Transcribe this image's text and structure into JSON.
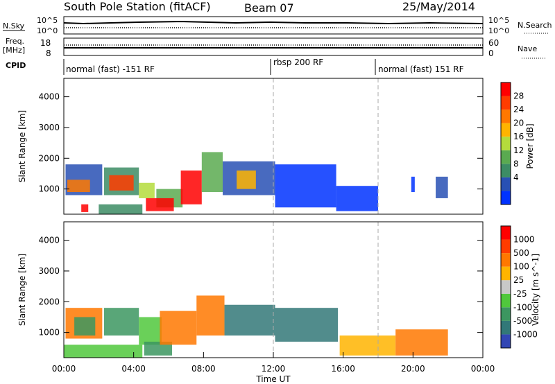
{
  "header": {
    "station": "South Pole Station (fitACF)",
    "beam": "Beam 07",
    "date": "25/May/2014"
  },
  "top_panels": {
    "nsky_label": "N.Sky",
    "nsky_ticks": [
      "10^5",
      "10^0"
    ],
    "nsearch_label": "N.Search",
    "nsearch_ticks": [
      "10^5",
      "10^0"
    ],
    "freq_label_1": "Freq.",
    "freq_label_2": "[MHz]",
    "freq_ticks": [
      "18",
      "8"
    ],
    "nave_label": "Nave",
    "nave_ticks": [
      "60",
      "0"
    ],
    "cpid_label": "CPID",
    "cpid_segments": [
      {
        "label": "normal (fast) -151 RF",
        "start": 0,
        "end": 12
      },
      {
        "label": "rbsp 200 RF",
        "start": 12,
        "end": 18
      },
      {
        "label": "normal (fast) 151 RF",
        "start": 18,
        "end": 24
      }
    ]
  },
  "chart_data": [
    {
      "type": "heatmap",
      "name": "power",
      "xlabel": "Time UT",
      "ylabel": "Slant Range [km]",
      "xlim": [
        0,
        24
      ],
      "ylim": [
        180,
        4600
      ],
      "yticks": [
        "1000",
        "2000",
        "3000",
        "4000"
      ],
      "xticks": [
        "00:00",
        "04:00",
        "08:00",
        "12:00",
        "16:00",
        "20:00",
        "00:00"
      ],
      "colorbar": {
        "label": "Power [dB]",
        "ticks": [
          "28",
          "24",
          "20",
          "16",
          "12",
          "8",
          "4"
        ],
        "colors": [
          "#0032ff",
          "#2850b4",
          "#3c8c64",
          "#5aaa50",
          "#b4dc3c",
          "#ffb400",
          "#ff7800",
          "#ff3c00",
          "#ff0000"
        ]
      },
      "regions": [
        {
          "t0": 0.1,
          "t1": 2.2,
          "r0": 800,
          "r1": 1800,
          "level": 1
        },
        {
          "t0": 0.2,
          "t1": 1.5,
          "r0": 900,
          "r1": 1300,
          "level": 6
        },
        {
          "t0": 2.3,
          "t1": 4.3,
          "r0": 800,
          "r1": 1700,
          "level": 2
        },
        {
          "t0": 2.6,
          "t1": 4.0,
          "r0": 950,
          "r1": 1450,
          "level": 7
        },
        {
          "t0": 4.3,
          "t1": 5.2,
          "r0": 700,
          "r1": 1200,
          "level": 4
        },
        {
          "t0": 5.3,
          "t1": 6.8,
          "r0": 400,
          "r1": 1000,
          "level": 3
        },
        {
          "t0": 4.7,
          "t1": 6.3,
          "r0": 280,
          "r1": 700,
          "level": 8
        },
        {
          "t0": 6.7,
          "t1": 7.9,
          "r0": 500,
          "r1": 1600,
          "level": 8
        },
        {
          "t0": 7.9,
          "t1": 9.1,
          "r0": 900,
          "r1": 2200,
          "level": 3
        },
        {
          "t0": 9.1,
          "t1": 12.1,
          "r0": 800,
          "r1": 1900,
          "level": 1
        },
        {
          "t0": 9.9,
          "t1": 11.0,
          "r0": 1000,
          "r1": 1600,
          "level": 5
        },
        {
          "t0": 12.1,
          "t1": 15.6,
          "r0": 400,
          "r1": 1800,
          "level": 0
        },
        {
          "t0": 15.6,
          "t1": 18.0,
          "r0": 280,
          "r1": 1100,
          "level": 0
        },
        {
          "t0": 19.9,
          "t1": 20.1,
          "r0": 900,
          "r1": 1400,
          "level": 0
        },
        {
          "t0": 21.3,
          "t1": 22.0,
          "r0": 700,
          "r1": 1400,
          "level": 1
        },
        {
          "t0": 2.0,
          "t1": 4.5,
          "r0": 180,
          "r1": 500,
          "level": 2
        },
        {
          "t0": 1.0,
          "t1": 1.4,
          "r0": 250,
          "r1": 500,
          "level": 8
        }
      ]
    },
    {
      "type": "heatmap",
      "name": "velocity",
      "xlabel": "Time UT",
      "ylabel": "Slant Range [km]",
      "xlim": [
        0,
        24
      ],
      "ylim": [
        180,
        4600
      ],
      "yticks": [
        "1000",
        "2000",
        "3000",
        "4000"
      ],
      "xticks": [
        "00:00",
        "04:00",
        "08:00",
        "12:00",
        "16:00",
        "20:00",
        "00:00"
      ],
      "colorbar": {
        "label": "Velocity [m s^-1]",
        "ticks": [
          "1000",
          "500",
          "100",
          "25",
          "-25",
          "-100",
          "-500",
          "-1000"
        ],
        "colors": [
          "#3246b4",
          "#327878",
          "#3c9660",
          "#50c83c",
          "#c8c8c8",
          "#ffb400",
          "#ff7800",
          "#ff3c00",
          "#ff0000"
        ]
      },
      "regions": [
        {
          "t0": 0.1,
          "t1": 2.2,
          "r0": 800,
          "r1": 1800,
          "level": 6
        },
        {
          "t0": 0.6,
          "t1": 1.8,
          "r0": 900,
          "r1": 1500,
          "level": 2
        },
        {
          "t0": 2.3,
          "t1": 4.3,
          "r0": 900,
          "r1": 1800,
          "level": 2
        },
        {
          "t0": 4.3,
          "t1": 5.6,
          "r0": 600,
          "r1": 1500,
          "level": 3
        },
        {
          "t0": 4.6,
          "t1": 6.2,
          "r0": 250,
          "r1": 700,
          "level": 2
        },
        {
          "t0": 5.5,
          "t1": 7.6,
          "r0": 600,
          "r1": 1700,
          "level": 6
        },
        {
          "t0": 7.6,
          "t1": 9.2,
          "r0": 900,
          "r1": 2200,
          "level": 6
        },
        {
          "t0": 9.2,
          "t1": 12.1,
          "r0": 900,
          "r1": 1900,
          "level": 1
        },
        {
          "t0": 12.1,
          "t1": 15.7,
          "r0": 700,
          "r1": 1800,
          "level": 1
        },
        {
          "t0": 15.8,
          "t1": 19.0,
          "r0": 250,
          "r1": 900,
          "level": 5
        },
        {
          "t0": 19.0,
          "t1": 22.0,
          "r0": 250,
          "r1": 1100,
          "level": 6
        },
        {
          "t0": 0.0,
          "t1": 4.5,
          "r0": 180,
          "r1": 600,
          "level": 3
        }
      ]
    }
  ]
}
